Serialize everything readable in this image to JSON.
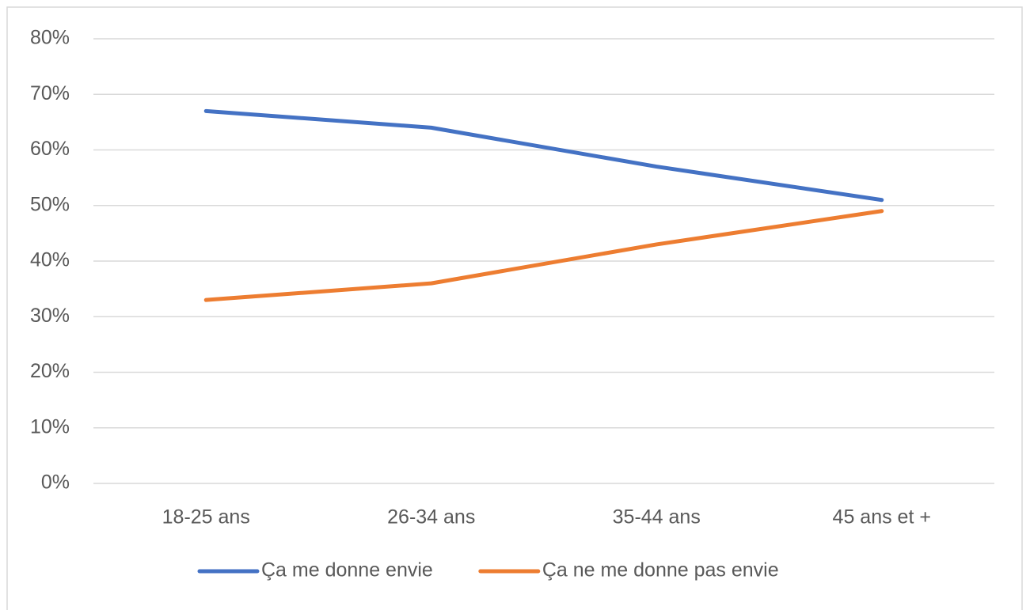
{
  "chart_data": {
    "type": "line",
    "categories": [
      "18-25 ans",
      "26-34 ans",
      "35-44 ans",
      "45 ans et +"
    ],
    "series": [
      {
        "name": "Ça me donne envie",
        "color": "#4472c4",
        "values": [
          67,
          64,
          57,
          51
        ]
      },
      {
        "name": "Ça ne me donne pas envie",
        "color": "#ed7d31",
        "values": [
          33,
          36,
          43,
          49
        ]
      }
    ],
    "ylim": [
      0,
      80
    ],
    "yticks": [
      {
        "value": 0,
        "label": "0%"
      },
      {
        "value": 10,
        "label": "10%"
      },
      {
        "value": 20,
        "label": "20%"
      },
      {
        "value": 30,
        "label": "30%"
      },
      {
        "value": 40,
        "label": "40%"
      },
      {
        "value": 50,
        "label": "50%"
      },
      {
        "value": 60,
        "label": "60%"
      },
      {
        "value": 70,
        "label": "70%"
      },
      {
        "value": 80,
        "label": "80%"
      }
    ],
    "grid": true,
    "legend": "bottom"
  }
}
